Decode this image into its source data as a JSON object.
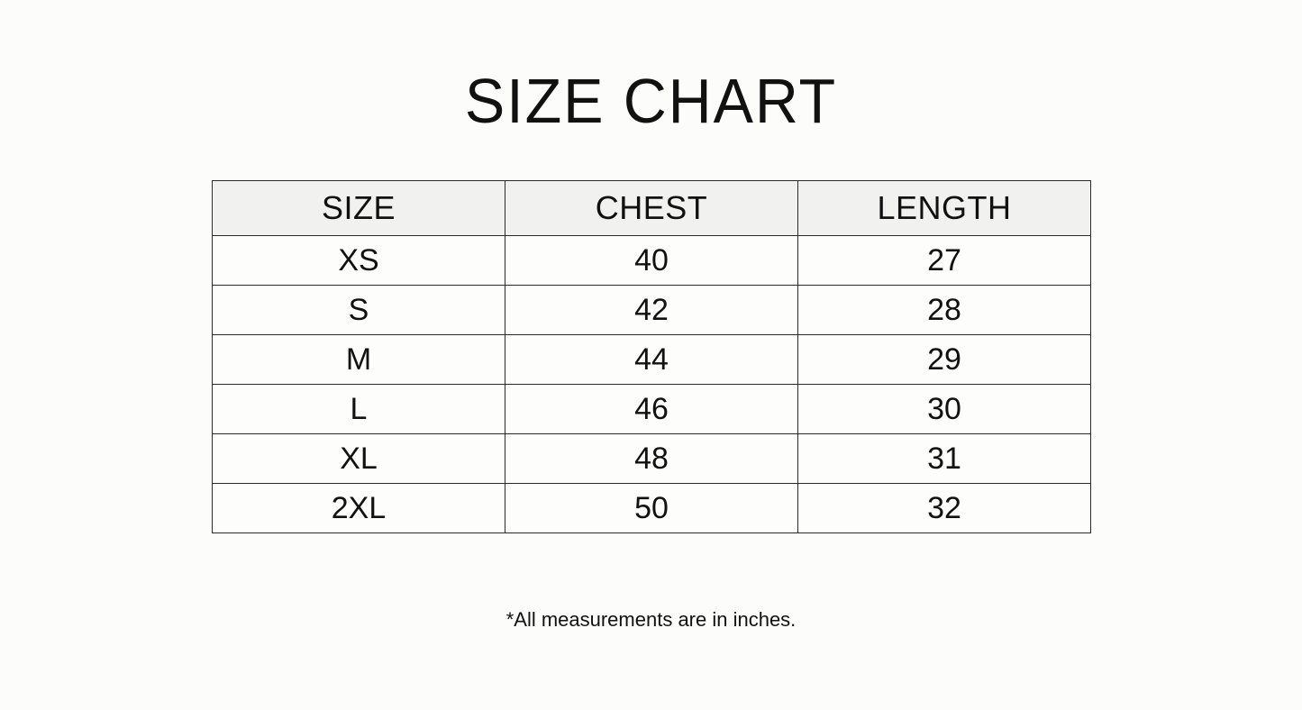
{
  "title": "SIZE CHART",
  "table": {
    "headers": [
      "SIZE",
      "CHEST",
      "LENGTH"
    ],
    "rows": [
      [
        "XS",
        "40",
        "27"
      ],
      [
        "S",
        "42",
        "28"
      ],
      [
        "M",
        "44",
        "29"
      ],
      [
        "L",
        "46",
        "30"
      ],
      [
        "XL",
        "48",
        "31"
      ],
      [
        "2XL",
        "50",
        "32"
      ]
    ]
  },
  "footnote": "*All measurements are in inches."
}
